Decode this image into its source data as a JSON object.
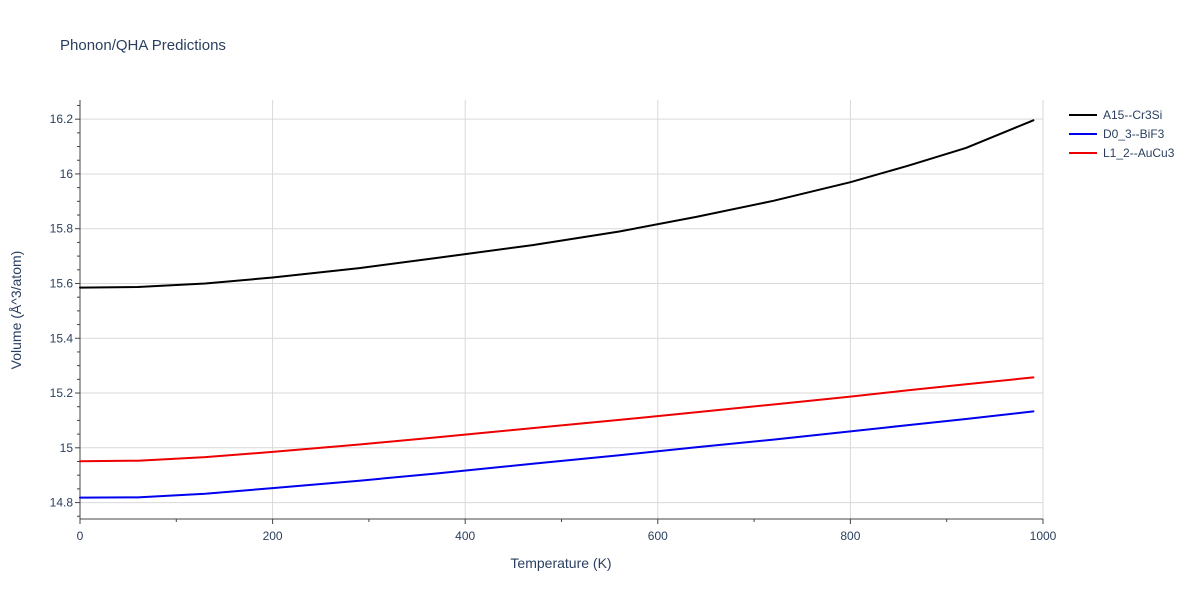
{
  "chart_data": {
    "type": "line",
    "title": "Phonon/QHA Predictions",
    "xlabel": "Temperature (K)",
    "ylabel": "Volume (Å^3/atom)",
    "xlim": [
      0,
      1000
    ],
    "ylim": [
      14.74,
      16.27
    ],
    "xticks": [
      0,
      200,
      400,
      600,
      800,
      1000
    ],
    "xtick_labels": [
      "0",
      "200",
      "400",
      "600",
      "800",
      "1000"
    ],
    "yticks": [
      14.8,
      15.0,
      15.2,
      15.4,
      15.6,
      15.8,
      16.0,
      16.2
    ],
    "ytick_labels": [
      "14.8",
      "15",
      "15.2",
      "15.4",
      "15.6",
      "15.8",
      "16",
      "16.2"
    ],
    "grid": true,
    "legend_position": "top-right",
    "series": [
      {
        "name": "A15--Cr3Si",
        "color": "#000000",
        "x": [
          0,
          60,
          130,
          200,
          290,
          370,
          470,
          560,
          640,
          720,
          800,
          860,
          920,
          990
        ],
        "y": [
          15.585,
          15.587,
          15.6,
          15.622,
          15.656,
          15.693,
          15.74,
          15.79,
          15.843,
          15.902,
          15.97,
          16.03,
          16.095,
          16.196
        ]
      },
      {
        "name": "D0_3--BiF3",
        "color": "#0000ee",
        "x": [
          0,
          60,
          130,
          200,
          290,
          370,
          470,
          560,
          640,
          720,
          800,
          860,
          920,
          990
        ],
        "y": [
          14.818,
          14.819,
          14.832,
          14.853,
          14.88,
          14.906,
          14.942,
          14.973,
          15.002,
          15.03,
          15.06,
          15.083,
          15.105,
          15.133
        ]
      },
      {
        "name": "L1_2--AuCu3",
        "color": "#ee0000",
        "x": [
          0,
          60,
          130,
          200,
          290,
          370,
          470,
          560,
          640,
          720,
          800,
          860,
          920,
          990
        ],
        "y": [
          14.951,
          14.953,
          14.966,
          14.985,
          15.012,
          15.038,
          15.072,
          15.102,
          15.13,
          15.158,
          15.187,
          15.21,
          15.232,
          15.257
        ]
      }
    ]
  }
}
